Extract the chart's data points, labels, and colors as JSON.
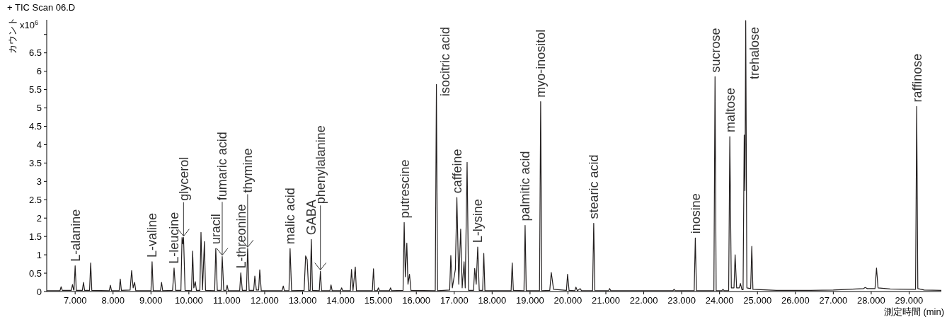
{
  "chart_data": {
    "type": "line",
    "title": "+ TIC Scan 06.D",
    "xlabel": "測定時間 (min)",
    "ylabel": "カウント",
    "xlim": [
      6.25,
      29.85
    ],
    "ylim": [
      0,
      7.4
    ],
    "xticks": [
      {
        "value": 7,
        "label": "7.000"
      },
      {
        "value": 8,
        "label": "8.000"
      },
      {
        "value": 9,
        "label": "9.000"
      },
      {
        "value": 10,
        "label": "10.000"
      },
      {
        "value": 11,
        "label": "11.000"
      },
      {
        "value": 12,
        "label": "12.000"
      },
      {
        "value": 13,
        "label": "13.000"
      },
      {
        "value": 14,
        "label": "14.000"
      },
      {
        "value": 15,
        "label": "15.000"
      },
      {
        "value": 16,
        "label": "16.000"
      },
      {
        "value": 17,
        "label": "17.000"
      },
      {
        "value": 18,
        "label": "18.000"
      },
      {
        "value": 19,
        "label": "19.000"
      },
      {
        "value": 20,
        "label": "20.000"
      },
      {
        "value": 21,
        "label": "21.000"
      },
      {
        "value": 22,
        "label": "22.000"
      },
      {
        "value": 23,
        "label": "23.000"
      },
      {
        "value": 24,
        "label": "24.000"
      },
      {
        "value": 25,
        "label": "25.000"
      },
      {
        "value": 26,
        "label": "26.000"
      },
      {
        "value": 27,
        "label": "27.000"
      },
      {
        "value": 28,
        "label": "28.000"
      },
      {
        "value": 29,
        "label": "29.000"
      }
    ],
    "yticks": [
      0,
      0.5,
      1,
      1.5,
      2,
      2.5,
      3,
      3.5,
      4,
      4.5,
      5,
      5.5,
      6,
      6.5,
      {
        "value": 7,
        "label": null
      }
    ],
    "series": [
      {
        "color": "#231f1f",
        "x": [
          6.25,
          6.6,
          6.63,
          6.66,
          6.9,
          6.93,
          6.96,
          6.97,
          7.0,
          7.03,
          7.19,
          7.22,
          7.25,
          7.38,
          7.41,
          7.44,
          7.9,
          7.93,
          7.96,
          8.16,
          8.19,
          8.22,
          8.45,
          8.49,
          8.53,
          8.57,
          8.6,
          9.0,
          9.03,
          9.06,
          9.25,
          9.28,
          9.31,
          9.57,
          9.61,
          9.65,
          9.79,
          9.82,
          9.84,
          9.86,
          9.9,
          10.07,
          10.1,
          10.13,
          10.17,
          10.2,
          10.29,
          10.32,
          10.36,
          10.41,
          10.44,
          10.68,
          10.71,
          10.75,
          10.85,
          10.88,
          10.92,
          10.98,
          11.01,
          11.04,
          11.34,
          11.37,
          11.41,
          11.52,
          11.55,
          11.59,
          11.71,
          11.74,
          11.78,
          11.84,
          11.87,
          11.91,
          12.46,
          12.49,
          12.52,
          12.64,
          12.67,
          12.71,
          13.04,
          13.08,
          13.12,
          13.16,
          13.2,
          13.23,
          13.26,
          13.44,
          13.47,
          13.5,
          13.72,
          13.75,
          13.78,
          14.0,
          14.03,
          14.06,
          14.26,
          14.29,
          14.33,
          14.39,
          14.42,
          14.84,
          14.87,
          14.9,
          14.97,
          15.0,
          15.03,
          15.29,
          15.32,
          15.35,
          15.65,
          15.68,
          15.71,
          15.75,
          15.78,
          15.82,
          15.86,
          16.5,
          16.53,
          16.56,
          16.88,
          16.91,
          16.95,
          17.03,
          17.07,
          17.12,
          17.17,
          17.21,
          17.26,
          17.29,
          17.34,
          17.38,
          17.51,
          17.54,
          17.58,
          17.62,
          17.66,
          17.75,
          17.78,
          17.81,
          18.5,
          18.53,
          18.56,
          18.84,
          18.87,
          18.9,
          19.25,
          19.28,
          19.31,
          19.52,
          19.56,
          19.62,
          19.96,
          19.99,
          20.03,
          20.18,
          20.21,
          20.25,
          20.32,
          20.36,
          20.65,
          20.68,
          20.71,
          21.07,
          21.1,
          21.13,
          22.77,
          22.8,
          22.83,
          23.33,
          23.36,
          23.39,
          23.85,
          23.88,
          23.91,
          24.06,
          24.09,
          24.12,
          24.24,
          24.27,
          24.31,
          24.38,
          24.41,
          24.45,
          24.52,
          24.55,
          24.59,
          24.62,
          24.65,
          24.67,
          24.69,
          24.72,
          24.82,
          24.85,
          24.88,
          25.5,
          26.4,
          27.0,
          27.8,
          27.84,
          27.9,
          28.1,
          28.14,
          28.18,
          28.5,
          29.17,
          29.2,
          29.23,
          29.4,
          29.85
        ],
        "values": [
          0.02,
          0.02,
          0.13,
          0.03,
          0.03,
          0.19,
          0.04,
          0.04,
          0.7,
          0.03,
          0.03,
          0.25,
          0.03,
          0.03,
          0.78,
          0.03,
          0.02,
          0.17,
          0.02,
          0.02,
          0.34,
          0.03,
          0.04,
          0.57,
          0.1,
          0.25,
          0.02,
          0.02,
          0.81,
          0.02,
          0.02,
          0.25,
          0.02,
          0.03,
          0.64,
          0.03,
          0.03,
          1.47,
          1.3,
          1.47,
          0.03,
          0.02,
          1.1,
          0.1,
          0.27,
          0.03,
          0.03,
          1.61,
          0.05,
          1.36,
          0.03,
          0.02,
          1.17,
          0.03,
          0.03,
          0.95,
          0.03,
          0.03,
          0.17,
          0.02,
          0.02,
          0.51,
          0.03,
          0.03,
          1.17,
          0.03,
          0.03,
          0.42,
          0.04,
          0.04,
          0.59,
          0.02,
          0.02,
          0.15,
          0.02,
          0.02,
          1.17,
          0.02,
          0.03,
          0.97,
          0.87,
          0.03,
          0.03,
          1.42,
          0.03,
          0.02,
          0.55,
          0.02,
          0.02,
          0.18,
          0.02,
          0.02,
          0.1,
          0.02,
          0.02,
          0.6,
          0.03,
          0.67,
          0.02,
          0.02,
          0.62,
          0.02,
          0.02,
          0.1,
          0.02,
          0.02,
          0.1,
          0.02,
          0.03,
          1.88,
          0.4,
          1.32,
          0.2,
          0.47,
          0.03,
          0.02,
          5.64,
          0.02,
          0.04,
          0.98,
          0.1,
          0.6,
          2.56,
          0.2,
          1.7,
          0.1,
          0.81,
          0.1,
          3.52,
          0.03,
          0.03,
          0.63,
          0.2,
          1.21,
          0.03,
          0.03,
          1.04,
          0.02,
          0.02,
          0.78,
          0.03,
          0.02,
          1.8,
          0.02,
          0.02,
          5.17,
          0.02,
          0.03,
          0.52,
          0.06,
          0.03,
          0.47,
          0.03,
          0.02,
          0.12,
          0.02,
          0.08,
          0.02,
          0.02,
          1.86,
          0.02,
          0.02,
          0.08,
          0.02,
          0.02,
          0.06,
          0.02,
          0.02,
          1.46,
          0.02,
          0.02,
          5.85,
          0.02,
          0.02,
          0.06,
          0.02,
          0.02,
          4.22,
          0.1,
          0.1,
          1.0,
          0.1,
          0.1,
          0.22,
          0.05,
          0.05,
          4.26,
          2.75,
          7.38,
          0.1,
          0.08,
          1.23,
          0.06,
          0.03,
          0.03,
          0.04,
          0.08,
          0.11,
          0.08,
          0.08,
          0.64,
          0.1,
          0.07,
          0.06,
          5.04,
          0.08,
          0.04,
          0.03
        ]
      }
    ],
    "annotations": [
      "x10$^{6}$",
      {
        "text": "L-alanine",
        "x": 7.0,
        "y": 0.7
      },
      {
        "text": "L-valine",
        "x": 9.03,
        "y": 0.81
      },
      {
        "text": "L-leucine",
        "x": 9.61,
        "y": 0.64
      },
      {
        "text": "glycerol",
        "x": 9.86,
        "y": 1.47
      },
      {
        "text": "uracil",
        "x": 10.71,
        "y": 1.17
      },
      {
        "text": "fumaric acid",
        "x": 10.88,
        "y": 0.95
      },
      {
        "text": "L-threonine",
        "x": 11.37,
        "y": 0.51
      },
      {
        "text": "thymine",
        "x": 11.55,
        "y": 1.17
      },
      {
        "text": "malic acid",
        "x": 12.67,
        "y": 1.17
      },
      {
        "text": "GABA",
        "x": 13.23,
        "y": 1.42
      },
      {
        "text": "phenylalanine",
        "x": 13.47,
        "y": 0.55
      },
      {
        "text": "putrescine",
        "x": 15.68,
        "y": 1.88
      },
      {
        "text": "isocitric acid",
        "x": 16.53,
        "y": 5.64
      },
      {
        "text": "caffeine",
        "x": 17.07,
        "y": 2.56
      },
      {
        "text": "L-lysine",
        "x": 17.62,
        "y": 1.21
      },
      {
        "text": "palmitic acid",
        "x": 18.87,
        "y": 1.8
      },
      {
        "text": "myo-inositol",
        "x": 19.28,
        "y": 5.17
      },
      {
        "text": "stearic acid",
        "x": 20.68,
        "y": 1.86
      },
      {
        "text": "inosine",
        "x": 23.36,
        "y": 1.46
      },
      {
        "text": "sucrose",
        "x": 23.88,
        "y": 5.85
      },
      {
        "text": "maltose",
        "x": 24.27,
        "y": 4.22
      },
      {
        "text": "trehalose",
        "x": 24.69,
        "y": 7.38
      },
      {
        "text": "raffinose",
        "x": 29.2,
        "y": 5.04
      }
    ]
  }
}
